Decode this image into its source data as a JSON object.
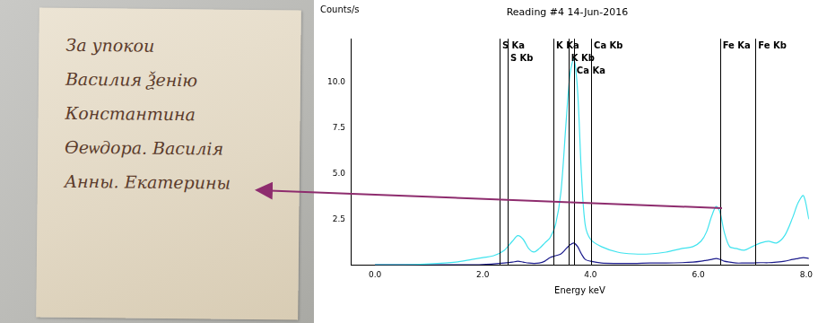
{
  "manuscript": {
    "lines": [
      "За упокои",
      "Василия Ѯенію",
      "Констaнтина",
      "Ѳеѡдора. Василія",
      "Анны. Екатерины"
    ]
  },
  "chart_data": {
    "type": "line",
    "title": "Reading #4 14-Jun-2016",
    "y_label": "Counts/s",
    "x_label": "Energy keV",
    "grid": false,
    "x": [
      0.0,
      0.5,
      1.0,
      1.5,
      1.8,
      2.0,
      2.2,
      2.4,
      2.55,
      2.65,
      2.75,
      2.85,
      2.95,
      3.05,
      3.15,
      3.25,
      3.35,
      3.45,
      3.55,
      3.62,
      3.69,
      3.76,
      3.83,
      3.9,
      4.0,
      4.2,
      4.5,
      4.8,
      5.1,
      5.4,
      5.7,
      5.9,
      6.05,
      6.15,
      6.25,
      6.33,
      6.4,
      6.48,
      6.58,
      6.7,
      6.85,
      7.0,
      7.15,
      7.3,
      7.45,
      7.6,
      7.75,
      7.85,
      7.95,
      8.05
    ],
    "series": [
      {
        "color": "#3fe3ee",
        "values": [
          0,
          0,
          0.05,
          0.15,
          0.3,
          0.4,
          0.5,
          0.8,
          1.3,
          1.6,
          1.4,
          0.9,
          0.7,
          0.9,
          1.2,
          1.5,
          2.2,
          4.0,
          8.0,
          10.5,
          11.3,
          9.5,
          5.0,
          2.2,
          1.4,
          1.0,
          0.7,
          0.6,
          0.6,
          0.7,
          0.9,
          1.0,
          1.3,
          1.8,
          2.7,
          3.2,
          2.9,
          1.8,
          1.0,
          0.9,
          0.8,
          1.0,
          1.2,
          1.3,
          1.2,
          1.6,
          2.6,
          3.4,
          3.8,
          2.5
        ]
      },
      {
        "color": "#1c1c8c",
        "values": [
          0,
          0,
          0,
          0,
          0,
          0.02,
          0.05,
          0.1,
          0.15,
          0.2,
          0.15,
          0.1,
          0.08,
          0.1,
          0.2,
          0.4,
          0.5,
          0.6,
          0.9,
          1.1,
          1.2,
          1.0,
          0.6,
          0.3,
          0.2,
          0.1,
          0.08,
          0.08,
          0.1,
          0.1,
          0.12,
          0.15,
          0.2,
          0.25,
          0.3,
          0.35,
          0.3,
          0.2,
          0.15,
          0.1,
          0.1,
          0.1,
          0.12,
          0.12,
          0.15,
          0.2,
          0.3,
          0.35,
          0.4,
          0.35
        ]
      }
    ],
    "annotations": [
      {
        "label": "S Ka",
        "x": 2.31
      },
      {
        "label": "S Kb",
        "x": 2.46
      },
      {
        "label": "K Ka",
        "x": 3.31
      },
      {
        "label": "K Kb",
        "x": 3.59
      },
      {
        "label": "Ca Ka",
        "x": 3.69
      },
      {
        "label": "Ca Kb",
        "x": 4.01
      },
      {
        "label": "Fe Ka",
        "x": 6.4
      },
      {
        "label": "Fe Kb",
        "x": 7.06
      }
    ],
    "xlim": [
      -0.45,
      8.05
    ],
    "xticks": [
      {
        "value": 0,
        "label": "0.0"
      },
      {
        "value": 2,
        "label": "2.0"
      },
      {
        "value": 4,
        "label": "4.0"
      },
      {
        "value": 6,
        "label": "6.0"
      },
      {
        "value": 8,
        "label": "8.0"
      }
    ],
    "ylim": [
      0,
      12.4
    ],
    "yticks": [
      2.5,
      {
        "value": 5,
        "label": "5.0"
      },
      7.5,
      {
        "value": 10,
        "label": "10.0"
      }
    ]
  }
}
